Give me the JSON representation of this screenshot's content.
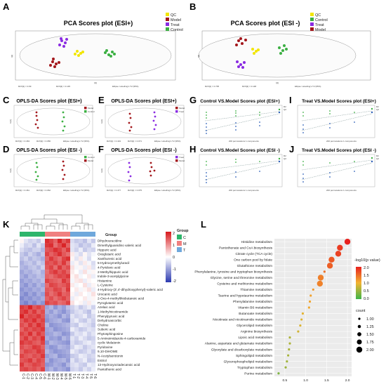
{
  "panels": {
    "A": {
      "label": "A",
      "title": "PCA Scores plot (ESI+)",
      "yaxis": "t[2]",
      "xaxis": "t[1]",
      "footer": [
        "R2X[1] = 0.69",
        "R2X[2] = 0.145",
        "Ellipse: Hotelling's T2 (95%)"
      ],
      "legend": [
        {
          "name": "QC",
          "color": "#f2e600"
        },
        {
          "name": "Model",
          "color": "#a3171c"
        },
        {
          "name": "Treat",
          "color": "#8a2be2"
        },
        {
          "name": "Control",
          "color": "#3cb043"
        }
      ]
    },
    "B": {
      "label": "B",
      "title": "PCA Scores plot (ESI -)",
      "yaxis": "t[2]",
      "xaxis": "t[1]",
      "footer": [
        "R2X[1] = 0.705",
        "R2X[2] = 0.148",
        "Ellipse: Hotelling's T2 (95%)"
      ],
      "legend": [
        {
          "name": "QC",
          "color": "#f2e600"
        },
        {
          "name": "Control",
          "color": "#3cb043"
        },
        {
          "name": "Treat",
          "color": "#8a2be2"
        },
        {
          "name": "Model",
          "color": "#a3171c"
        }
      ]
    },
    "C": {
      "label": "C",
      "title": "OPLS-DA Scores plot (ESI+)",
      "yaxis": "to[1]",
      "footer": [
        "R2X[1] = 0.463",
        "R2X[2] = 0.056",
        "Ellipse: Hotelling's T2 (95%)"
      ],
      "legend": [
        {
          "name": "Model",
          "color": "#a3171c"
        },
        {
          "name": "Control",
          "color": "#3cb043"
        }
      ]
    },
    "D": {
      "label": "D",
      "title": "OPLS-DA Scores plot (ESI -)",
      "yaxis": "to[1]",
      "footer": [
        "R2X[1] = 0.461",
        "R2X[2] = 0.062",
        "Ellipse: Hotelling's T2 (95%)"
      ],
      "legend": [
        {
          "name": "Control",
          "color": "#3cb043"
        },
        {
          "name": "Model",
          "color": "#a3171c"
        }
      ]
    },
    "E": {
      "label": "E",
      "title": "OPLS-DA Scores plot (ESI+)",
      "yaxis": "to[1]",
      "footer": [
        "R2X[1] = 0.419",
        "R2X[2] = 0.071",
        "Ellipse: Hotelling's T2 (95%)"
      ],
      "legend": [
        {
          "name": "Model",
          "color": "#a3171c"
        },
        {
          "name": "Treat",
          "color": "#8a2be2"
        }
      ]
    },
    "F": {
      "label": "F",
      "title": "OPLS-DA Scores plot (ESI -)",
      "yaxis": "to[1]",
      "footer": [
        "R2X[1] = 0.477",
        "R2X[2] = 0.075",
        "Ellipse: Hotelling's T2 (95%)"
      ],
      "legend": [
        {
          "name": "Treat",
          "color": "#8a2be2"
        },
        {
          "name": "Model",
          "color": "#a3171c"
        }
      ]
    },
    "G": {
      "label": "G",
      "title": "Control VS.Model Scores plot (ESI+)",
      "xaxis": "200 permutations 1 components",
      "legend": [
        "R2",
        "Q2"
      ]
    },
    "H": {
      "label": "H",
      "title": "Control VS.Model Scores plot (ESI -)",
      "xaxis": "200 permutations 1 components",
      "legend": [
        "R2",
        "Q2"
      ]
    },
    "I": {
      "label": "I",
      "title": "Treat VS.Model Scores plot (ESI+)",
      "xaxis": "200 permutations 1 components",
      "legend": [
        "R2",
        "Q2"
      ]
    },
    "J": {
      "label": "J",
      "title": "Treat VS.Model Scores plot (ESI -)",
      "xaxis": "200 permutations 1 components",
      "legend": [
        "R2",
        "Q2"
      ]
    },
    "K": {
      "label": "K"
    },
    "L": {
      "label": "L"
    }
  },
  "heatmap": {
    "group_header": "Group",
    "legend_title": "Group",
    "groups": [
      {
        "name": "C",
        "color": "#2db56b"
      },
      {
        "name": "M",
        "color": "#f08080"
      },
      {
        "name": "T",
        "color": "#6fa8dc"
      }
    ],
    "colorbar_ticks": [
      "2",
      "1",
      "0",
      "-1",
      "-2"
    ],
    "columns": [
      "C-1",
      "C-2",
      "C-3",
      "C-4",
      "C-5",
      "C-6",
      "M-1",
      "M-2",
      "M-3",
      "M-4",
      "M-5",
      "M-6",
      "T-1",
      "T-2",
      "T-3",
      "T-4",
      "T-5",
      "T-6"
    ],
    "rows": [
      "Dihydrouracidine",
      "Dimethylguanidino valeric acid",
      "Hippuric acid",
      "Oxoglutaric acid",
      "Xanthurenic acid",
      "5-Hydroxymethyluracil",
      "4-Pyridoxic acid",
      "2-Methylhippuric acid",
      "Indole-3-acetylglycine",
      "Histamine",
      "L-Cysteine",
      "4-Hydroxy-(3',4'-dihydroxyphenyl)-valeric acid",
      "Urocanic acid",
      "2-Oxo-4-methylthiobutanoic acid",
      "Pyroglutamic acid",
      "Azelaic acid",
      "1-Methylnicotinamide",
      "Phenylpyruvic acid",
      "Dehydroascorbic",
      "Choline",
      "Suberic acid",
      "Phytosphingosine",
      "5-Aminoimidazole-4-carboxamide",
      "cyclic Melatonin",
      "Pyridoxine",
      "9,10-DiHOME",
      "N-Acetylserotonin",
      "Estriol",
      "13-Hydroxyoctadecanoic acid",
      "Pantothenic acid"
    ],
    "values": [
      [
        0.1,
        -0.3,
        -0.5,
        -0.4,
        -0.6,
        -0.2,
        2.0,
        1.8,
        1.5,
        2.1,
        1.6,
        1.9,
        -0.4,
        -0.6,
        -0.5,
        -0.7,
        -0.3,
        -0.6
      ],
      [
        -0.2,
        -0.5,
        -0.4,
        -0.7,
        -0.3,
        -0.6,
        1.9,
        2.0,
        1.4,
        1.7,
        2.1,
        1.5,
        -0.3,
        -0.4,
        -0.7,
        -0.5,
        -0.6,
        -0.2
      ],
      [
        -0.4,
        -0.6,
        -0.7,
        -0.5,
        -0.5,
        -0.8,
        1.6,
        1.7,
        2.0,
        1.8,
        1.5,
        1.9,
        -0.3,
        -0.5,
        -0.2,
        -0.6,
        -0.4,
        -0.5
      ],
      [
        -0.6,
        -0.8,
        -0.5,
        -0.7,
        -0.9,
        -0.6,
        1.8,
        1.5,
        1.7,
        2.0,
        1.6,
        1.4,
        0.2,
        -0.2,
        -0.4,
        0.1,
        -0.3,
        -0.1
      ],
      [
        -0.7,
        -0.5,
        -0.8,
        -0.6,
        -0.7,
        -0.9,
        1.5,
        1.9,
        1.6,
        1.4,
        1.8,
        2.0,
        0.1,
        -0.3,
        0.2,
        -0.1,
        -0.4,
        0.0
      ],
      [
        -0.9,
        -0.7,
        -0.6,
        -0.8,
        -0.5,
        -0.7,
        1.7,
        1.6,
        1.8,
        1.5,
        1.9,
        1.4,
        -0.2,
        0.1,
        -0.3,
        0.2,
        -0.1,
        -0.4
      ],
      [
        -0.8,
        -0.9,
        -0.7,
        -0.6,
        -0.8,
        -0.5,
        1.6,
        1.8,
        1.4,
        1.9,
        1.5,
        1.7,
        0.3,
        -0.1,
        0.1,
        -0.2,
        0.2,
        -0.3
      ],
      [
        -1.0,
        -0.8,
        -0.9,
        -0.7,
        -0.6,
        -0.9,
        1.4,
        1.7,
        1.9,
        1.6,
        1.8,
        1.5,
        0.2,
        0.0,
        -0.2,
        0.3,
        -0.1,
        0.1
      ],
      [
        -0.9,
        -1.1,
        -0.8,
        -0.9,
        -0.7,
        -0.8,
        1.5,
        1.4,
        1.6,
        1.8,
        1.7,
        1.9,
        0.1,
        0.3,
        -0.1,
        0.0,
        0.2,
        -0.2
      ],
      [
        -1.1,
        -0.9,
        -1.0,
        -0.8,
        -0.9,
        -0.7,
        1.8,
        1.6,
        1.5,
        1.4,
        1.9,
        1.6,
        -0.1,
        0.2,
        0.3,
        -0.2,
        0.1,
        0.0
      ],
      [
        -1.0,
        -1.2,
        -0.9,
        -1.1,
        -0.8,
        -1.0,
        1.4,
        1.8,
        1.7,
        1.5,
        1.6,
        1.8,
        0.2,
        -0.1,
        0.0,
        0.3,
        -0.2,
        0.1
      ],
      [
        -1.2,
        -1.0,
        -1.1,
        -0.9,
        -1.0,
        -0.8,
        1.6,
        1.5,
        1.8,
        1.7,
        1.4,
        1.9,
        0.0,
        0.2,
        -0.1,
        0.1,
        0.3,
        -0.2
      ],
      [
        -1.1,
        -1.3,
        -1.0,
        -1.2,
        -0.9,
        -1.1,
        1.7,
        1.4,
        1.6,
        1.9,
        1.5,
        1.6,
        0.1,
        -0.2,
        0.2,
        0.0,
        -0.1,
        0.3
      ],
      [
        -1.3,
        -1.1,
        -1.2,
        -1.0,
        -1.1,
        -0.9,
        1.5,
        1.7,
        1.4,
        1.6,
        1.8,
        1.5,
        -0.2,
        0.1,
        0.0,
        0.2,
        -0.1,
        0.1
      ],
      [
        -1.2,
        -1.4,
        -1.1,
        -1.3,
        -1.0,
        -1.2,
        1.8,
        1.6,
        1.7,
        1.4,
        1.5,
        1.8,
        0.3,
        0.0,
        0.1,
        -0.2,
        0.2,
        -0.1
      ],
      [
        1.9,
        1.7,
        2.1,
        1.6,
        1.8,
        1.5,
        -1.0,
        -0.8,
        -1.2,
        -0.9,
        -1.1,
        -0.7,
        -0.5,
        -0.3,
        -0.6,
        -0.4,
        -0.2,
        -0.5
      ],
      [
        1.8,
        2.0,
        1.6,
        1.9,
        1.5,
        1.7,
        -0.9,
        -1.1,
        -0.8,
        -1.0,
        -1.2,
        -0.9,
        -0.6,
        -0.4,
        -0.3,
        -0.5,
        -0.7,
        -0.2
      ],
      [
        2.1,
        1.6,
        1.8,
        1.7,
        1.9,
        1.6,
        -1.1,
        -0.9,
        -1.0,
        -1.2,
        -0.8,
        -1.0,
        -0.3,
        -0.5,
        -0.4,
        -0.2,
        -0.6,
        -0.4
      ],
      [
        1.6,
        1.9,
        1.7,
        2.0,
        1.6,
        1.8,
        -1.2,
        -1.0,
        -0.9,
        -0.8,
        -1.1,
        -1.2,
        -0.4,
        -0.2,
        -0.5,
        -0.6,
        -0.3,
        -0.5
      ],
      [
        1.7,
        1.5,
        1.9,
        1.6,
        2.0,
        1.7,
        -0.8,
        -1.2,
        -1.1,
        -1.0,
        -0.9,
        -0.8,
        -0.5,
        -0.6,
        -0.2,
        -0.3,
        -0.4,
        -0.6
      ],
      [
        1.5,
        1.8,
        1.6,
        1.8,
        1.7,
        1.9,
        -1.0,
        -0.9,
        -1.2,
        -1.1,
        -1.0,
        -0.9,
        -0.2,
        -0.4,
        -0.6,
        -0.5,
        -0.3,
        -0.4
      ],
      [
        1.8,
        1.6,
        2.0,
        1.5,
        1.9,
        1.6,
        -1.1,
        -1.0,
        -0.8,
        -0.9,
        -1.2,
        -1.1,
        -0.6,
        -0.3,
        -0.4,
        -0.2,
        -0.5,
        -0.3
      ],
      [
        1.6,
        1.9,
        1.5,
        1.8,
        1.6,
        2.0,
        -0.9,
        -1.1,
        -1.0,
        -1.2,
        -0.8,
        -1.0,
        -0.3,
        -0.5,
        -0.2,
        -0.4,
        -0.6,
        -0.5
      ],
      [
        1.9,
        1.7,
        1.8,
        1.6,
        1.5,
        1.8,
        -1.2,
        -0.8,
        -0.9,
        -1.0,
        -1.1,
        -1.2,
        -0.4,
        -0.6,
        -0.5,
        -0.3,
        -0.2,
        -0.4
      ],
      [
        1.7,
        1.5,
        1.6,
        1.9,
        1.8,
        1.5,
        -1.0,
        -1.2,
        -1.1,
        -0.8,
        -0.9,
        -1.0,
        -0.5,
        -0.2,
        -0.3,
        -0.6,
        -0.4,
        -0.3
      ],
      [
        1.5,
        1.8,
        1.7,
        1.6,
        1.9,
        1.7,
        -0.8,
        -1.0,
        -1.2,
        -1.1,
        -1.0,
        -0.9,
        -0.2,
        -0.4,
        -0.6,
        -0.5,
        -0.3,
        -0.6
      ],
      [
        1.8,
        1.6,
        1.5,
        1.7,
        1.6,
        1.9,
        -1.1,
        -0.9,
        -0.8,
        -1.2,
        -1.1,
        -1.0,
        -0.6,
        -0.5,
        -0.2,
        -0.3,
        -0.5,
        -0.4
      ],
      [
        1.6,
        1.7,
        1.9,
        1.5,
        1.8,
        1.6,
        -0.9,
        -1.2,
        -1.0,
        -0.9,
        -0.8,
        -1.1,
        -0.3,
        -0.6,
        -0.4,
        -0.2,
        -0.6,
        -0.5
      ],
      [
        1.9,
        1.5,
        1.6,
        1.8,
        1.7,
        1.5,
        -1.2,
        -1.1,
        -0.9,
        -1.0,
        -1.2,
        -0.8,
        -0.4,
        -0.3,
        -0.5,
        -0.6,
        -0.2,
        -0.3
      ],
      [
        1.7,
        1.8,
        1.6,
        1.7,
        1.5,
        1.8,
        -1.0,
        -0.8,
        -1.1,
        -0.9,
        -1.0,
        -1.2,
        -0.5,
        -0.4,
        -0.6,
        -0.3,
        -0.5,
        -0.2
      ]
    ]
  },
  "chart_data": {
    "type": "scatter",
    "title": "",
    "xlabel": "",
    "xticks": [
      "0.5",
      "1.0",
      "1.5",
      "2.0"
    ],
    "xlim": [
      0.25,
      2.1
    ],
    "legend_title": "-log10(p value)",
    "color_ticks": [
      "2.0",
      "1.5",
      "1.0",
      "0.5",
      "0.0"
    ],
    "size_title": "count",
    "size_ticks": [
      "1.00",
      "1.25",
      "1.50",
      "1.75",
      "2.00"
    ],
    "categories": [
      "Histidine metabolism",
      "Pantothenate and CoA biosynthesis",
      "Citrate cycle (TCA cycle)",
      "One carbon pool by folate",
      "Glutathione metabolism",
      "Phenylalanine, tyrosine and tryptophan biosynthesis",
      "Glycine, serine and threonine metabolism",
      "Cysteine and methionine metabolism",
      "Thiamine metabolism",
      "Taurine and hypotaurine metabolism",
      "Phenylalanine metabolism",
      "Vitamin B6 metabolism",
      "Butanoate metabolism",
      "Nicotinate and nicotinamide metabolism",
      "Glycerolipid metabolism",
      "Arginine biosynthesis",
      "Lipoic acid metabolism",
      "Alanine, aspartate and glutamate metabolism",
      "Glyoxylate and dicarboxylate metabolism",
      "Sphingolipid metabolism",
      "Glycerophospholipid metabolism",
      "Tryptophan metabolism",
      "Purine metabolism"
    ],
    "x": [
      2.0,
      1.82,
      1.78,
      1.62,
      1.58,
      1.45,
      1.36,
      1.34,
      1.18,
      1.12,
      1.1,
      1.08,
      0.93,
      0.9,
      0.87,
      0.82,
      0.62,
      0.62,
      0.6,
      0.58,
      0.55,
      0.52,
      0.35
    ],
    "count": [
      2,
      2,
      2,
      2,
      2,
      1,
      2,
      2,
      1,
      1,
      1,
      1,
      1,
      1,
      1,
      1,
      1,
      1,
      1,
      1,
      1,
      1,
      1
    ],
    "p": [
      2.0,
      1.82,
      1.78,
      1.62,
      1.58,
      1.45,
      1.36,
      1.34,
      1.18,
      1.12,
      1.1,
      1.08,
      0.93,
      0.9,
      0.87,
      0.82,
      0.62,
      0.62,
      0.6,
      0.58,
      0.55,
      0.52,
      0.35
    ]
  }
}
